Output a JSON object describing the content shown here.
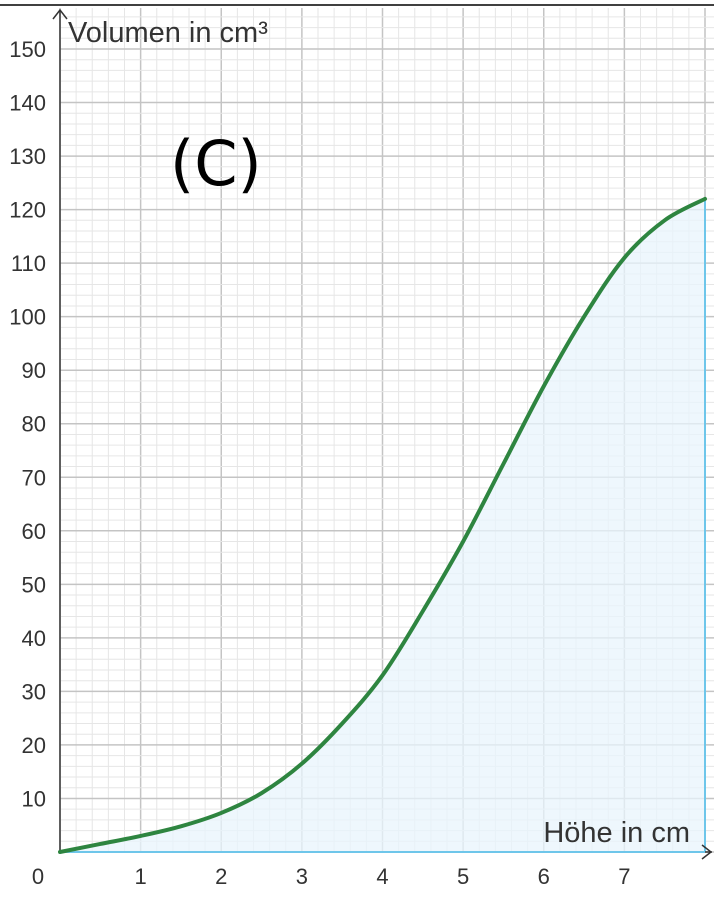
{
  "chart_data": {
    "type": "area",
    "annotation": "(C)",
    "xlabel": "Höhe in cm",
    "ylabel": "Volumen in cm³",
    "xlim": [
      0,
      8
    ],
    "ylim": [
      0,
      150
    ],
    "x_ticks": [
      "0",
      "1",
      "2",
      "3",
      "4",
      "5",
      "6",
      "7"
    ],
    "y_ticks": [
      "10",
      "20",
      "30",
      "40",
      "50",
      "60",
      "70",
      "80",
      "90",
      "100",
      "110",
      "120",
      "130",
      "140",
      "150"
    ],
    "grid": true,
    "x": [
      0,
      0.5,
      1,
      1.5,
      2,
      2.5,
      3,
      3.5,
      4,
      4.5,
      5,
      5.5,
      6,
      6.5,
      7,
      7.5,
      8
    ],
    "y": [
      0,
      1.5,
      3,
      4.8,
      7.3,
      11,
      16.5,
      24,
      33,
      45,
      58,
      72.5,
      87,
      100,
      111,
      118,
      122
    ],
    "colors": {
      "line": "#2e8540",
      "fill": "#e8f4fc",
      "fill_edge": "#6ec6ea",
      "grid_major": "#c4c4c4",
      "grid_minor": "#e6e6e6"
    }
  }
}
